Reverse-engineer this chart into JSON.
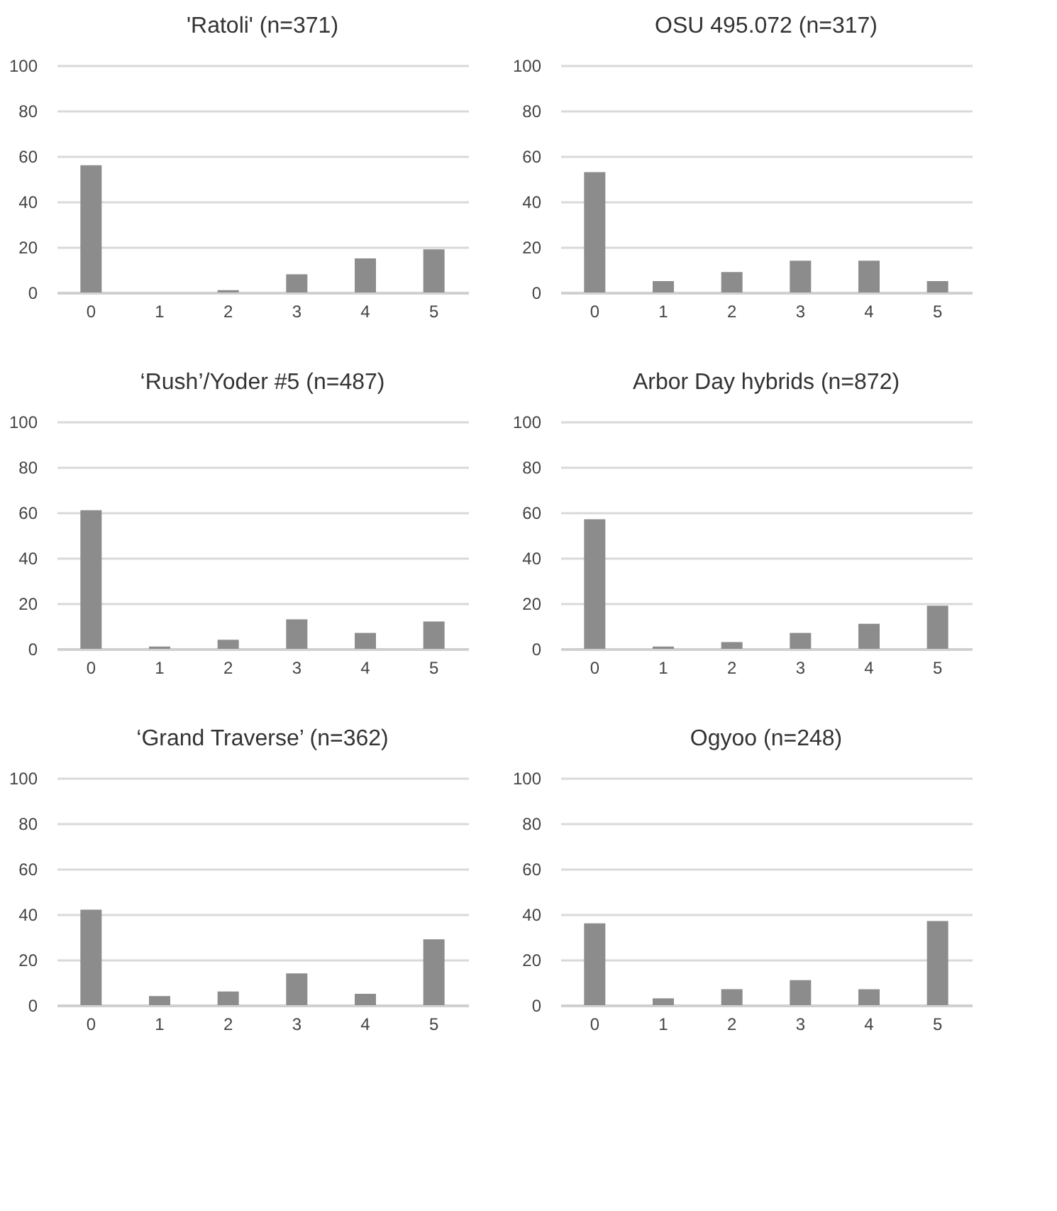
{
  "chart_data": [
    {
      "type": "bar",
      "title": "'Ratoli'  (n=371)",
      "categories": [
        "0",
        "1",
        "2",
        "3",
        "4",
        "5"
      ],
      "values": [
        56,
        0,
        1,
        8,
        15,
        19
      ],
      "color": "#8c8c8c",
      "ylim": [
        0,
        100
      ],
      "yticks": [
        0,
        20,
        40,
        60,
        80,
        100
      ],
      "grid": "y"
    },
    {
      "type": "bar",
      "title": "OSU 495.072  (n=317)",
      "categories": [
        "0",
        "1",
        "2",
        "3",
        "4",
        "5"
      ],
      "values": [
        53,
        5,
        9,
        14,
        14,
        5
      ],
      "color": "#8c8c8c",
      "ylim": [
        0,
        100
      ],
      "yticks": [
        0,
        20,
        40,
        60,
        80,
        100
      ],
      "grid": "y"
    },
    {
      "type": "bar",
      "title": "‘Rush’/Yoder #5 (n=487)",
      "categories": [
        "0",
        "1",
        "2",
        "3",
        "4",
        "5"
      ],
      "values": [
        61,
        1,
        4,
        13,
        7,
        12
      ],
      "color": "#8c8c8c",
      "ylim": [
        0,
        100
      ],
      "yticks": [
        0,
        20,
        40,
        60,
        80,
        100
      ],
      "grid": "y"
    },
    {
      "type": "bar",
      "title": "Arbor Day hybrids  (n=872)",
      "categories": [
        "0",
        "1",
        "2",
        "3",
        "4",
        "5"
      ],
      "values": [
        57,
        1,
        3,
        7,
        11,
        19
      ],
      "color": "#8c8c8c",
      "ylim": [
        0,
        100
      ],
      "yticks": [
        0,
        20,
        40,
        60,
        80,
        100
      ],
      "grid": "y"
    },
    {
      "type": "bar",
      "title": "‘Grand Traverse’ (n=362)",
      "categories": [
        "0",
        "1",
        "2",
        "3",
        "4",
        "5"
      ],
      "values": [
        42,
        4,
        6,
        14,
        5,
        29
      ],
      "color": "#8c8c8c",
      "ylim": [
        0,
        100
      ],
      "yticks": [
        0,
        20,
        40,
        60,
        80,
        100
      ],
      "grid": "y"
    },
    {
      "type": "bar",
      "title": "Ogyoo (n=248)",
      "categories": [
        "0",
        "1",
        "2",
        "3",
        "4",
        "5"
      ],
      "values": [
        36,
        3,
        7,
        11,
        7,
        37
      ],
      "color": "#8c8c8c",
      "ylim": [
        0,
        100
      ],
      "yticks": [
        0,
        20,
        40,
        60,
        80,
        100
      ],
      "grid": "y"
    }
  ]
}
